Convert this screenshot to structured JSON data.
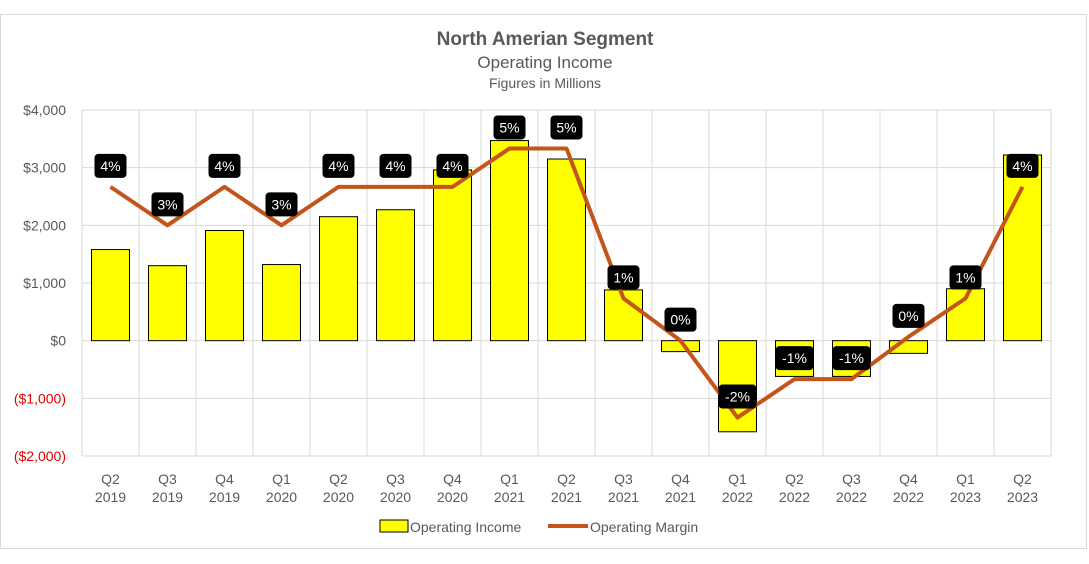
{
  "chart_data": {
    "type": "bar+line",
    "title": "North  Amerian Segment",
    "subtitle": "Operating Income",
    "subtitle2": "Figures in Millions",
    "categories": [
      [
        "Q2",
        "2019"
      ],
      [
        "Q3",
        "2019"
      ],
      [
        "Q4",
        "2019"
      ],
      [
        "Q1",
        "2020"
      ],
      [
        "Q2",
        "2020"
      ],
      [
        "Q3",
        "2020"
      ],
      [
        "Q4",
        "2020"
      ],
      [
        "Q1",
        "2021"
      ],
      [
        "Q2",
        "2021"
      ],
      [
        "Q3",
        "2021"
      ],
      [
        "Q4",
        "2021"
      ],
      [
        "Q1",
        "2022"
      ],
      [
        "Q2",
        "2022"
      ],
      [
        "Q3",
        "2022"
      ],
      [
        "Q4",
        "2022"
      ],
      [
        "Q1",
        "2023"
      ],
      [
        "Q2",
        "2023"
      ]
    ],
    "y_ticks": [
      {
        "value": 4000,
        "label": "$4,000"
      },
      {
        "value": 3000,
        "label": "$3,000"
      },
      {
        "value": 2000,
        "label": "$2,000"
      },
      {
        "value": 1000,
        "label": "$1,000"
      },
      {
        "value": 0,
        "label": "$0"
      },
      {
        "value": -1000,
        "label": "($1,000)"
      },
      {
        "value": -2000,
        "label": "($2,000)"
      }
    ],
    "ylim": [
      -2000,
      4000
    ],
    "y2lim": [
      -3,
      6
    ],
    "grid": true,
    "legend_placement": "bottom",
    "series": [
      {
        "name": "Operating Income",
        "type": "bar",
        "color": "#ffff00",
        "values": [
          1580,
          1300,
          1910,
          1320,
          2150,
          2270,
          2960,
          3470,
          3150,
          880,
          -190,
          -1580,
          -620,
          -620,
          -220,
          900,
          3220
        ]
      },
      {
        "name": "Operating Margin",
        "type": "line",
        "color": "#c5541b",
        "values": [
          4,
          3,
          4,
          3,
          4,
          4,
          4,
          5,
          5,
          1.1,
          0,
          -2,
          -1,
          -1,
          0.1,
          1.1,
          4
        ],
        "data_labels": [
          "4%",
          "3%",
          "4%",
          "3%",
          "4%",
          "4%",
          "4%",
          "5%",
          "5%",
          "1%",
          "0%",
          "-2%",
          "-1%",
          "-1%",
          "0%",
          "1%",
          "4%"
        ]
      }
    ]
  }
}
